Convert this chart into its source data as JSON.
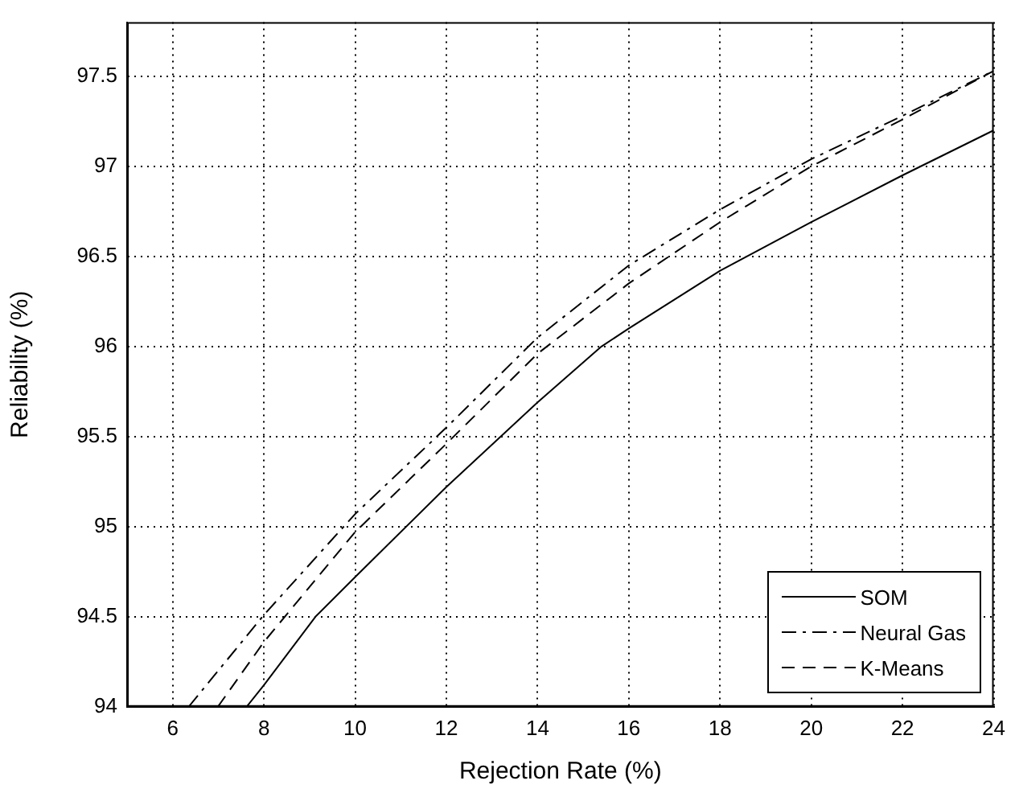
{
  "chart_data": {
    "type": "line",
    "xlabel": "Rejection Rate (%)",
    "ylabel": "Reliability (%)",
    "xlim": [
      5,
      24
    ],
    "xticks": [
      6,
      8,
      10,
      12,
      14,
      16,
      18,
      20,
      22,
      24
    ],
    "ylim": [
      94,
      97.8
    ],
    "yticks": [
      94,
      94.5,
      95,
      95.5,
      96,
      96.5,
      97,
      97.5
    ],
    "grid": true,
    "legend": "bottom right",
    "marker": "none",
    "series": [
      {
        "name": "SOM",
        "color": "#000000",
        "line_style": "solid",
        "x": [
          7.62,
          8,
          9.13,
          10,
          12,
          14,
          15.4,
          16,
          18,
          20,
          22,
          24
        ],
        "values": [
          94,
          94.12,
          94.5,
          94.72,
          95.22,
          95.69,
          96,
          96.1,
          96.42,
          96.69,
          96.95,
          97.2
        ]
      },
      {
        "name": "Neural Gas",
        "color": "#000000",
        "line_style": "dashdot",
        "x": [
          6.35,
          8,
          10,
          12,
          14,
          16,
          18,
          20,
          22,
          24
        ],
        "values": [
          94,
          94.51,
          95.07,
          95.55,
          96.05,
          96.45,
          96.76,
          97.04,
          97.28,
          97.53
        ]
      },
      {
        "name": "K-Means",
        "color": "#000000",
        "line_style": "dashed",
        "x": [
          6.99,
          8,
          10,
          12,
          14,
          16,
          18,
          20,
          22,
          24
        ],
        "values": [
          94,
          94.36,
          94.97,
          95.46,
          95.96,
          96.35,
          96.69,
          97,
          97.26,
          97.53
        ]
      }
    ]
  }
}
